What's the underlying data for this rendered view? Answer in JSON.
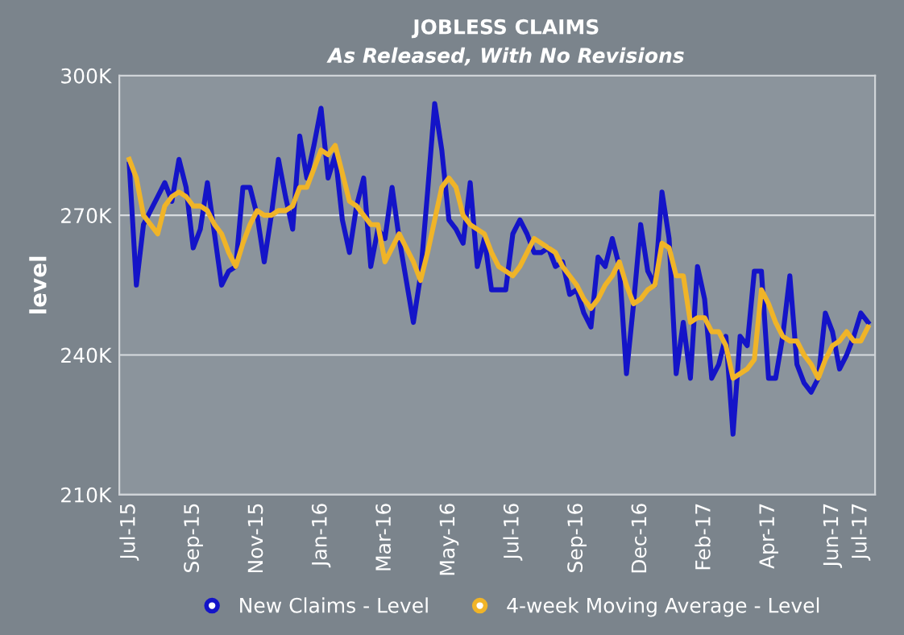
{
  "chart_data": {
    "type": "line",
    "title": "JOBLESS CLAIMS",
    "subtitle": "As Released, With No Revisions",
    "ylabel": "level",
    "categories": [
      "Jul-15",
      null,
      null,
      null,
      null,
      null,
      null,
      null,
      null,
      "Sep-15",
      null,
      null,
      null,
      null,
      null,
      null,
      null,
      null,
      "Nov-15",
      null,
      null,
      null,
      null,
      null,
      null,
      null,
      null,
      "Jan-16",
      null,
      null,
      null,
      null,
      null,
      null,
      null,
      null,
      "Mar-16",
      null,
      null,
      null,
      null,
      null,
      null,
      null,
      null,
      "May-16",
      null,
      null,
      null,
      null,
      null,
      null,
      null,
      null,
      "Jul-16",
      null,
      null,
      null,
      null,
      null,
      null,
      null,
      null,
      "Sep-16",
      null,
      null,
      null,
      null,
      null,
      null,
      null,
      null,
      "Dec-16",
      null,
      null,
      null,
      null,
      null,
      null,
      null,
      null,
      "Feb-17",
      null,
      null,
      null,
      null,
      null,
      null,
      null,
      null,
      "Apr-17",
      null,
      null,
      null,
      null,
      null,
      null,
      null,
      null,
      "Jun-17",
      null,
      null,
      null,
      "Jul-17",
      null
    ],
    "series": [
      {
        "name": "New Claims - Level",
        "color": "#1414c8",
        "values": [
          281,
          255,
          268,
          271,
          274,
          277,
          273,
          282,
          276,
          263,
          267,
          277,
          266,
          255,
          258,
          259,
          276,
          276,
          270,
          260,
          270,
          282,
          274,
          267,
          287,
          278,
          285,
          293,
          278,
          283,
          269,
          262,
          272,
          278,
          259,
          267,
          265,
          276,
          265,
          256,
          247,
          257,
          275,
          294,
          284,
          269,
          267,
          264,
          277,
          259,
          265,
          254,
          254,
          254,
          266,
          269,
          266,
          262,
          262,
          263,
          259,
          260,
          253,
          254,
          249,
          246,
          261,
          259,
          265,
          259,
          236,
          251,
          268,
          258,
          255,
          275,
          265,
          236,
          247,
          235,
          259,
          252,
          235,
          238,
          244,
          223,
          244,
          242,
          258,
          258,
          235,
          235,
          244,
          257,
          238,
          234,
          232,
          235,
          249,
          245,
          237,
          240,
          244,
          249,
          247
        ]
      },
      {
        "name": "4-week Moving Average - Level",
        "color": "#f0b428",
        "values": [
          282,
          278,
          270,
          268,
          266,
          272,
          274,
          275,
          274,
          272,
          272,
          271,
          268,
          266,
          262,
          259,
          264,
          268,
          271,
          270,
          270,
          271,
          271,
          272,
          276,
          276,
          280,
          284,
          283,
          285,
          279,
          273,
          272,
          270,
          268,
          268,
          260,
          263,
          266,
          263,
          260,
          256,
          262,
          269,
          276,
          278,
          276,
          270,
          268,
          267,
          266,
          262,
          259,
          258,
          257,
          259,
          262,
          265,
          264,
          263,
          262,
          259,
          257,
          255,
          252,
          250,
          252,
          255,
          257,
          260,
          255,
          251,
          252,
          254,
          255,
          264,
          263,
          257,
          257,
          247,
          248,
          248,
          245,
          245,
          242,
          235,
          236,
          237,
          239,
          254,
          251,
          247,
          244,
          243,
          243,
          240,
          238,
          235,
          239,
          242,
          243,
          245,
          243,
          243,
          246
        ]
      }
    ],
    "ylim": [
      210,
      300
    ],
    "yticks": [
      {
        "value": 210,
        "label": "210K"
      },
      {
        "value": 240,
        "label": "240K"
      },
      {
        "value": 270,
        "label": "270K"
      },
      {
        "value": 300,
        "label": "300K"
      }
    ],
    "grid": "y",
    "legend": "bottom",
    "marker": "none",
    "line_style": "solid"
  }
}
